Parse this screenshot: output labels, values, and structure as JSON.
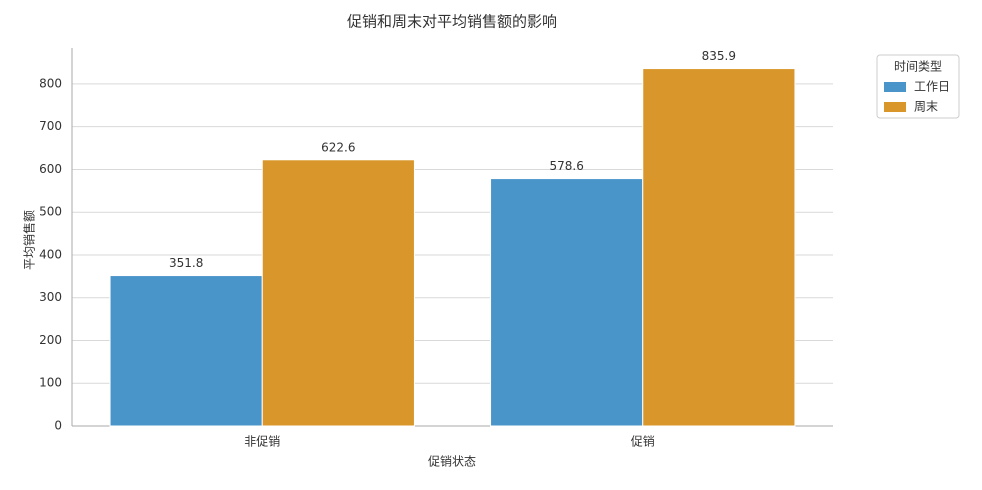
{
  "chart_data": {
    "type": "bar",
    "title": "促销和周末对平均销售额的影响",
    "x_label": "促销状态",
    "y_label": "平均销售额",
    "categories": [
      "非促销",
      "促销"
    ],
    "series": [
      {
        "name": "工作日",
        "color": "#4994c9",
        "values": [
          351.8,
          578.6
        ]
      },
      {
        "name": "周末",
        "color": "#d9972b",
        "values": [
          622.6,
          835.9
        ]
      }
    ],
    "legend_title": "时间类型",
    "legend": "upper right outside",
    "ylim": [
      0,
      884
    ],
    "yticks": [
      0,
      100,
      200,
      300,
      400,
      500,
      600,
      700,
      800
    ],
    "grid": true
  }
}
